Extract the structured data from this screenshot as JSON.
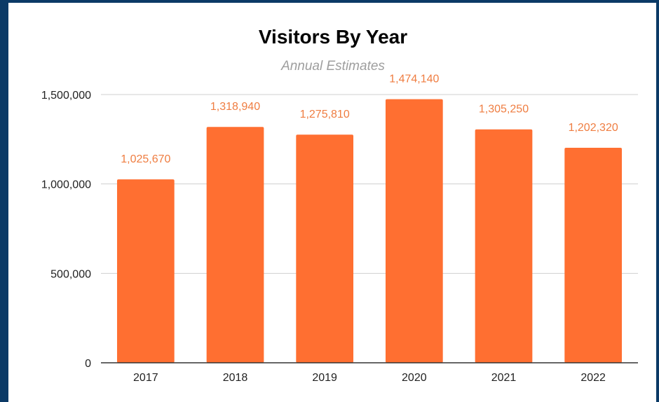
{
  "chart_data": {
    "type": "bar",
    "title": "Visitors By Year",
    "subtitle": "Annual Estimates",
    "categories": [
      "2017",
      "2018",
      "2019",
      "2020",
      "2021",
      "2022"
    ],
    "values": [
      1025670,
      1318940,
      1275810,
      1474140,
      1305250,
      1202320
    ],
    "data_labels": [
      "1,025,670",
      "1,318,940",
      "1,275,810",
      "1,474,140",
      "1,305,250",
      "1,202,320"
    ],
    "ylim": [
      0,
      1500000
    ],
    "yticks": [
      0,
      500000,
      1000000,
      1500000
    ],
    "ytick_labels": [
      "0",
      "500,000",
      "1,000,000",
      "1,500,000"
    ],
    "xlabel": "",
    "ylabel": "",
    "grid": true,
    "legend": "none",
    "bar_color": "#ff6f31",
    "label_color": "#ef7d41"
  }
}
